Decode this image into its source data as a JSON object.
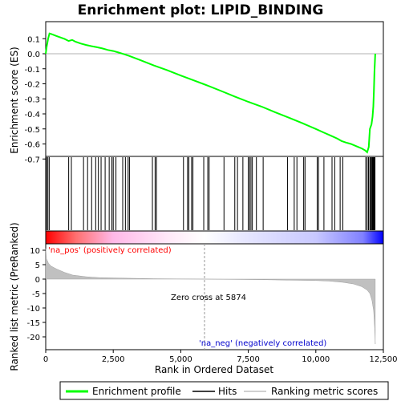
{
  "chart_data": {
    "type": "line",
    "title": "Enrichment plot: LIPID_BINDING",
    "xlabel": "Rank in Ordered Dataset",
    "ylabel_top": "Enrichment score (ES)",
    "ylabel_bottom": "Ranked list metric (PreRanked)",
    "x_ticks": [
      0,
      2500,
      5000,
      7500,
      10000,
      12500
    ],
    "x_tick_labels": [
      "0",
      "2,500",
      "5,000",
      "7,500",
      "10,000",
      "12,500"
    ],
    "es_ticks": [
      0.1,
      0.0,
      -0.1,
      -0.2,
      -0.3,
      -0.4,
      -0.5,
      -0.6,
      -0.7
    ],
    "es_tick_labels": [
      "0.1",
      "0.0",
      "-0.1",
      "-0.2",
      "-0.3",
      "-0.4",
      "-0.5",
      "-0.6",
      "-0.7"
    ],
    "metric_ticks": [
      10,
      5,
      0,
      -5,
      -10,
      -15,
      -20
    ],
    "metric_tick_labels": [
      "10",
      "5",
      "0",
      "-5",
      "-10",
      "-15",
      "-20"
    ],
    "xlim": [
      0,
      12500
    ],
    "es_ylim": [
      -0.7,
      0.15
    ],
    "metric_ylim": [
      -23,
      11
    ],
    "n_genes": 12200,
    "enrichment_profile": {
      "x": [
        0,
        40,
        90,
        140,
        200,
        400,
        700,
        850,
        980,
        1100,
        1300,
        1500,
        1700,
        1900,
        2100,
        2300,
        2500,
        2700,
        2900,
        3100,
        3500,
        4000,
        4500,
        5000,
        5500,
        6000,
        6500,
        7000,
        7500,
        8000,
        8500,
        9000,
        9500,
        10000,
        10300,
        10600,
        10800,
        10950,
        11100,
        11300,
        11500,
        11700,
        11820,
        11900,
        11960,
        12000,
        12060,
        12100,
        12130,
        12150,
        12170,
        12200
      ],
      "values": [
        0.0,
        0.05,
        0.1,
        0.135,
        0.132,
        0.118,
        0.098,
        0.085,
        0.092,
        0.08,
        0.068,
        0.058,
        0.05,
        0.043,
        0.035,
        0.025,
        0.018,
        0.008,
        -0.003,
        -0.015,
        -0.042,
        -0.078,
        -0.11,
        -0.145,
        -0.178,
        -0.212,
        -0.248,
        -0.285,
        -0.32,
        -0.352,
        -0.39,
        -0.425,
        -0.462,
        -0.5,
        -0.525,
        -0.548,
        -0.565,
        -0.58,
        -0.59,
        -0.6,
        -0.615,
        -0.63,
        -0.642,
        -0.655,
        -0.62,
        -0.5,
        -0.47,
        -0.42,
        -0.35,
        -0.25,
        -0.12,
        0.0
      ]
    },
    "hits": [
      30,
      80,
      130,
      850,
      950,
      1400,
      1550,
      1700,
      1850,
      1950,
      2050,
      2200,
      2350,
      2450,
      2500,
      2600,
      2850,
      2950,
      3050,
      3100,
      3950,
      4050,
      4100,
      5100,
      5250,
      5300,
      5400,
      5450,
      5850,
      6000,
      6050,
      6600,
      7000,
      7100,
      7300,
      7500,
      7550,
      7600,
      7650,
      7800,
      8050,
      8950,
      9200,
      9300,
      9550,
      9600,
      10050,
      10100,
      10300,
      10600,
      10700,
      10900,
      11000,
      11850,
      11900,
      11950,
      12000,
      12030,
      12060,
      12090,
      12110,
      12130,
      12150,
      12170,
      12190
    ],
    "ranked_metric": {
      "x": [
        0,
        30,
        100,
        200,
        400,
        700,
        1000,
        1500,
        2000,
        3000,
        4000,
        5000,
        5874,
        7000,
        8000,
        9000,
        10000,
        10500,
        11000,
        11400,
        11700,
        11900,
        12000,
        12080,
        12140,
        12180,
        12200
      ],
      "values": [
        10.5,
        7.0,
        5.5,
        4.5,
        3.5,
        2.3,
        1.4,
        0.8,
        0.5,
        0.3,
        0.15,
        0.05,
        0.0,
        -0.1,
        -0.2,
        -0.35,
        -0.5,
        -0.7,
        -1.1,
        -1.7,
        -2.6,
        -3.8,
        -5.0,
        -7.5,
        -11.0,
        -17.0,
        -22.5
      ]
    },
    "annotations": {
      "pos_label": "'na_pos' (positively correlated)",
      "neg_label": "'na_neg' (negatively correlated)",
      "zero_cross": "Zero cross at 5874",
      "zero_cross_rank": 5874
    },
    "legend": {
      "placement": "bottom",
      "items": [
        {
          "label": "Enrichment profile",
          "color": "#00ff00"
        },
        {
          "label": "Hits",
          "color": "#000000"
        },
        {
          "label": "Ranking metric scores",
          "color": "#c0c0c0"
        }
      ]
    },
    "colors": {
      "profile": "#00ff00",
      "hits": "#000000",
      "metric_fill": "#c0c0c0",
      "pos_label": "#ff0000",
      "neg_label": "#0000cc",
      "bar_pos": "#ff0000",
      "bar_mid": "#ffffff",
      "bar_neg": "#0000ff"
    }
  }
}
